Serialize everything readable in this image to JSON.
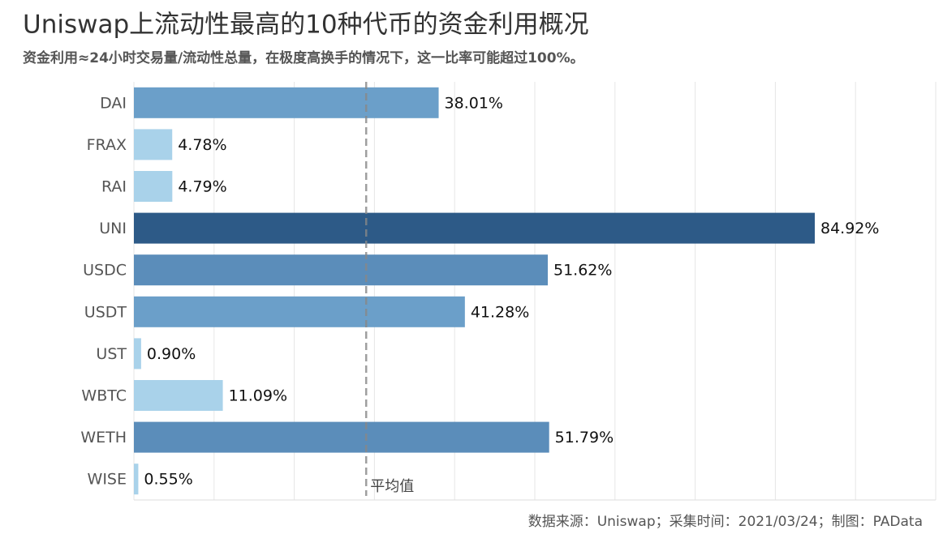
{
  "chart_data": {
    "type": "barh",
    "title": "Uniswap上流动性最高的10种代币的资金利用概况",
    "subtitle": "资金利用≈24小时交易量/流动性总量，在极度高换手的情况下，这一比率可能超过100%。",
    "source": "数据来源：Uniswap；采集时间：2021/03/24；制图：PAData",
    "categories": [
      "DAI",
      "FRAX",
      "RAI",
      "UNI",
      "USDC",
      "USDT",
      "UST",
      "WBTC",
      "WETH",
      "WISE"
    ],
    "values": [
      38.01,
      4.78,
      4.79,
      84.92,
      51.62,
      41.28,
      0.9,
      11.09,
      51.79,
      0.55
    ],
    "value_labels": [
      "38.01%",
      "4.78%",
      "4.79%",
      "84.92%",
      "51.62%",
      "41.28%",
      "0.90%",
      "11.09%",
      "51.79%",
      "0.55%"
    ],
    "colors": [
      "#6b9fc9",
      "#a9d2ea",
      "#a9d2ea",
      "#2d5a87",
      "#5b8dba",
      "#6b9fc9",
      "#a9d2ea",
      "#a9d2ea",
      "#5b8dba",
      "#a9d2ea"
    ],
    "average": {
      "value": 28.97,
      "label": "平均值"
    },
    "xlim": [
      0,
      100
    ],
    "xticks": [
      0,
      10,
      20,
      30,
      40,
      50,
      60,
      70,
      80,
      90,
      100
    ],
    "grid": true
  }
}
